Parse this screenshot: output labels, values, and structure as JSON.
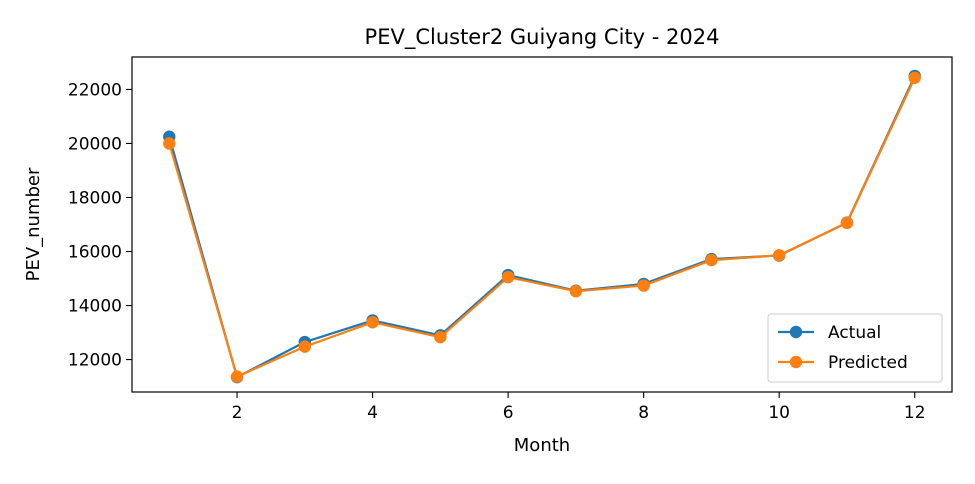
{
  "chart_data": {
    "type": "line",
    "title": "PEV_Cluster2 Guiyang City - 2024",
    "xlabel": "Month",
    "ylabel": "PEV_number",
    "x": [
      1,
      2,
      3,
      4,
      5,
      6,
      7,
      8,
      9,
      10,
      11,
      12
    ],
    "xlim": [
      0.45,
      12.55
    ],
    "ylim": [
      10800,
      23200
    ],
    "xticks": [
      2,
      4,
      6,
      8,
      10,
      12
    ],
    "yticks": [
      12000,
      14000,
      16000,
      18000,
      20000,
      22000
    ],
    "grid": false,
    "legend_position": "lower-right",
    "series": [
      {
        "name": "Actual",
        "color": "#1f77b4",
        "values": [
          20250,
          11350,
          12650,
          13450,
          12900,
          15130,
          14550,
          14800,
          15720,
          15850,
          17070,
          22500
        ]
      },
      {
        "name": "Predicted",
        "color": "#ff7f0e",
        "values": [
          20000,
          11370,
          12480,
          13380,
          12830,
          15050,
          14530,
          14740,
          15680,
          15860,
          17060,
          22430
        ]
      }
    ]
  }
}
